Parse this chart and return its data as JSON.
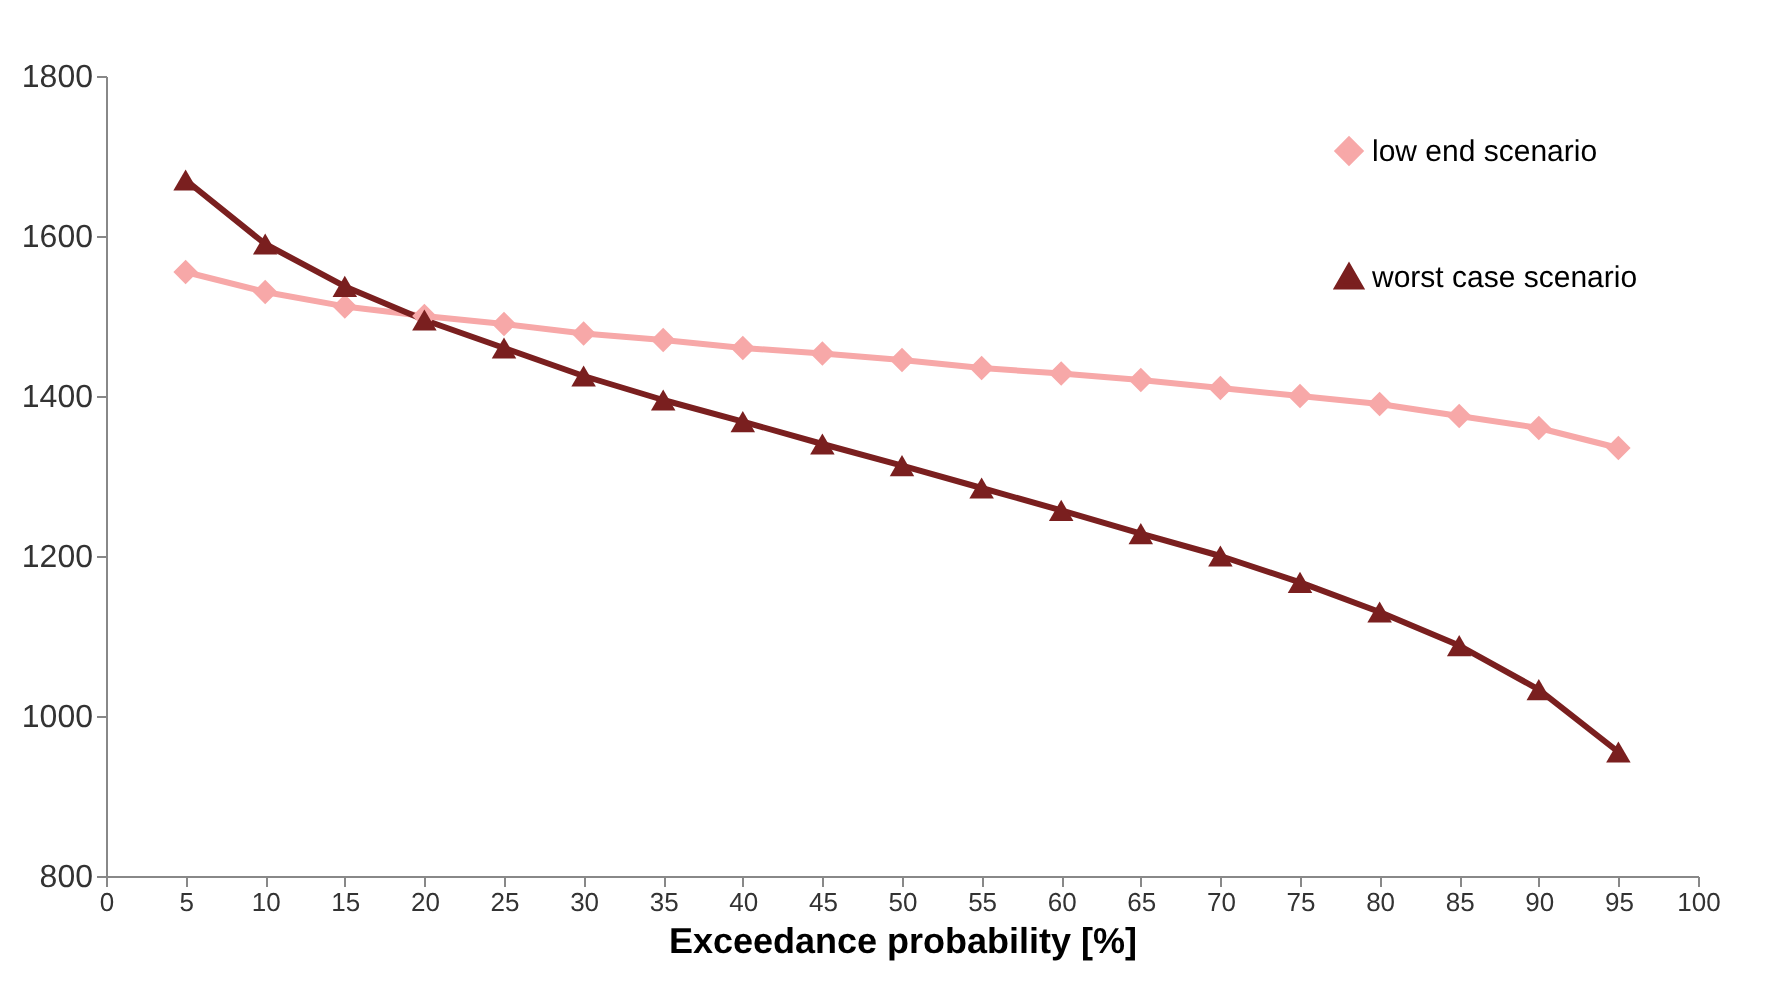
{
  "chart_data": {
    "type": "line",
    "xlabel": "Exceedance probability [%]",
    "x": [
      5,
      10,
      15,
      20,
      25,
      30,
      35,
      40,
      45,
      50,
      55,
      60,
      65,
      70,
      75,
      80,
      85,
      90,
      95
    ],
    "series": [
      {
        "name": "low end scenario",
        "color": "#f7a8a8",
        "marker": "diamond",
        "values": [
          1555,
          1530,
          1512,
          1500,
          1490,
          1478,
          1470,
          1460,
          1453,
          1445,
          1435,
          1428,
          1420,
          1410,
          1400,
          1390,
          1375,
          1360,
          1335
        ]
      },
      {
        "name": "worst case scenario",
        "color": "#7a1f1f",
        "marker": "triangle",
        "values": [
          1670,
          1590,
          1537,
          1495,
          1460,
          1425,
          1395,
          1368,
          1340,
          1313,
          1285,
          1257,
          1228,
          1200,
          1167,
          1130,
          1088,
          1033,
          955
        ]
      }
    ],
    "xlim": [
      0,
      100
    ],
    "xticks": [
      0,
      5,
      10,
      15,
      20,
      25,
      30,
      35,
      40,
      45,
      50,
      55,
      60,
      65,
      70,
      75,
      80,
      85,
      90,
      95,
      100
    ],
    "ylim": [
      800,
      1800
    ],
    "yticks": [
      800,
      1000,
      1200,
      1400,
      1600,
      1800
    ],
    "grid": false,
    "legend": "top right",
    "line_style": "solid"
  }
}
